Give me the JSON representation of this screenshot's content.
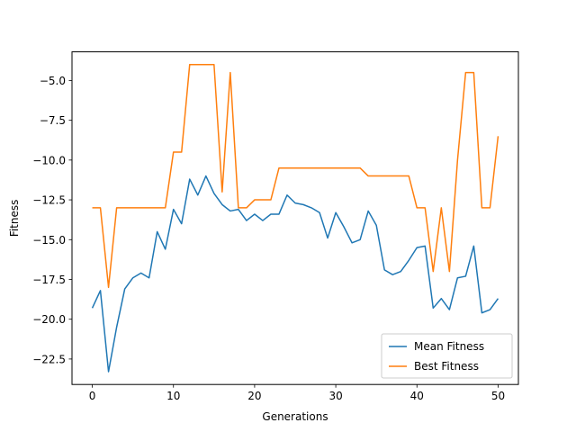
{
  "chart_data": {
    "type": "line",
    "title": "",
    "xlabel": "Generations",
    "ylabel": "Fitness",
    "xlim": [
      -2.5,
      52.5
    ],
    "ylim": [
      -24.1,
      -3.2
    ],
    "xticks": [
      0,
      10,
      20,
      30,
      40,
      50
    ],
    "xtick_labels": [
      "0",
      "10",
      "20",
      "30",
      "40",
      "50"
    ],
    "yticks": [
      -22.5,
      -20.0,
      -17.5,
      -15.0,
      -12.5,
      -10.0,
      -7.5,
      -5.0
    ],
    "ytick_labels": [
      "−22.5",
      "−20.0",
      "−17.5",
      "−15.0",
      "−12.5",
      "−10.0",
      "−7.5",
      "−5.0"
    ],
    "grid": false,
    "legend_position": "lower-right",
    "x": [
      0,
      1,
      2,
      3,
      4,
      5,
      6,
      7,
      8,
      9,
      10,
      11,
      12,
      13,
      14,
      15,
      16,
      17,
      18,
      19,
      20,
      21,
      22,
      23,
      24,
      25,
      26,
      27,
      28,
      29,
      30,
      31,
      32,
      33,
      34,
      35,
      36,
      37,
      38,
      39,
      40,
      41,
      42,
      43,
      44,
      45,
      46,
      47,
      48,
      49,
      50
    ],
    "series": [
      {
        "name": "Mean Fitness",
        "color": "#1f77b4",
        "values": [
          -19.3,
          -18.2,
          -23.3,
          -20.5,
          -18.1,
          -17.4,
          -17.1,
          -17.4,
          -14.5,
          -15.6,
          -13.1,
          -14.0,
          -11.2,
          -12.2,
          -11.0,
          -12.1,
          -12.8,
          -13.2,
          -13.1,
          -13.8,
          -13.4,
          -13.8,
          -13.4,
          -13.4,
          -12.2,
          -12.7,
          -12.8,
          -13.0,
          -13.3,
          -14.9,
          -13.3,
          -14.2,
          -15.2,
          -15.0,
          -13.2,
          -14.1,
          -16.9,
          -17.2,
          -17.0,
          -16.3,
          -15.5,
          -15.4,
          -19.3,
          -18.7,
          -19.4,
          -17.4,
          -17.3,
          -15.4,
          -19.6,
          -19.4,
          -18.7
        ]
      },
      {
        "name": "Best Fitness",
        "color": "#ff7f0e",
        "values": [
          -13.0,
          -13.0,
          -18.0,
          -13.0,
          -13.0,
          -13.0,
          -13.0,
          -13.0,
          -13.0,
          -13.0,
          -9.5,
          -9.5,
          -4.0,
          -4.0,
          -4.0,
          -4.0,
          -12.0,
          -4.5,
          -13.0,
          -13.0,
          -12.5,
          -12.5,
          -12.5,
          -10.5,
          -10.5,
          -10.5,
          -10.5,
          -10.5,
          -10.5,
          -10.5,
          -10.5,
          -10.5,
          -10.5,
          -10.5,
          -11.0,
          -11.0,
          -11.0,
          -11.0,
          -11.0,
          -11.0,
          -13.0,
          -13.0,
          -17.0,
          -13.0,
          -17.0,
          -10.0,
          -4.5,
          -4.5,
          -13.0,
          -13.0,
          -8.5
        ]
      }
    ]
  }
}
